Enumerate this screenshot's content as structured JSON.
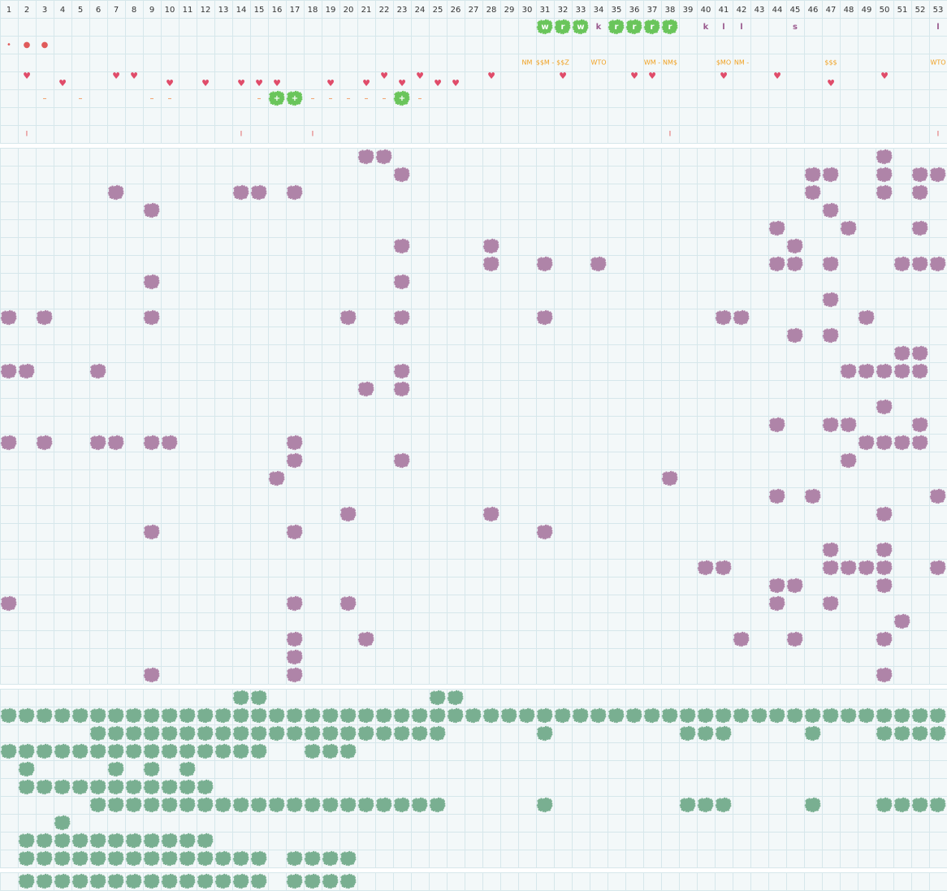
{
  "columns": [
    1,
    2,
    3,
    4,
    5,
    6,
    7,
    8,
    9,
    10,
    11,
    12,
    13,
    14,
    15,
    16,
    17,
    18,
    19,
    20,
    21,
    22,
    23,
    24,
    25,
    26,
    27,
    28,
    29,
    30,
    31,
    32,
    33,
    34,
    35,
    36,
    37,
    38,
    39,
    40,
    41,
    42,
    43,
    44,
    45,
    46,
    47,
    48,
    49,
    50,
    51,
    52,
    53
  ],
  "top_rows": [
    {
      "cells": [
        [
          31,
          "w",
          "tile"
        ],
        [
          32,
          "r",
          "tile"
        ],
        [
          33,
          "w",
          "tile"
        ],
        [
          34,
          "k",
          "letter"
        ],
        [
          35,
          "r",
          "tile"
        ],
        [
          36,
          "r",
          "tile"
        ],
        [
          37,
          "r",
          "tile"
        ],
        [
          38,
          "r",
          "tile"
        ],
        [
          40,
          "k",
          "letter"
        ],
        [
          41,
          "l",
          "letter"
        ],
        [
          42,
          "l",
          "letter"
        ],
        [
          45,
          "s",
          "letter"
        ],
        [
          53,
          "l",
          "letter"
        ]
      ]
    },
    {
      "cells": [
        [
          1,
          "•",
          "dot"
        ],
        [
          2,
          "●",
          "dot"
        ],
        [
          3,
          "●",
          "dot"
        ]
      ]
    },
    {
      "cells": [
        [
          30,
          "NM",
          "money"
        ],
        [
          31,
          "$$M -",
          "money"
        ],
        [
          32,
          "$$Z",
          "money"
        ],
        [
          34,
          "WTO",
          "money"
        ],
        [
          37,
          "WM -",
          "money"
        ],
        [
          38,
          "NM$",
          "money"
        ],
        [
          41,
          "$MO",
          "money"
        ],
        [
          42,
          "NM -",
          "money"
        ],
        [
          47,
          "$$$",
          "money"
        ],
        [
          53,
          "WTO",
          "money"
        ]
      ]
    },
    {
      "cells": [
        [
          2,
          "♥",
          "heart-high"
        ],
        [
          4,
          "♥",
          "heart-low"
        ],
        [
          7,
          "♥",
          "heart-high"
        ],
        [
          8,
          "♥",
          "heart-high"
        ],
        [
          10,
          "♥",
          "heart-low"
        ],
        [
          12,
          "♥",
          "heart-low"
        ],
        [
          14,
          "♥",
          "heart-low"
        ],
        [
          15,
          "♥",
          "heart-low"
        ],
        [
          16,
          "♥",
          "heart-low"
        ],
        [
          19,
          "♥",
          "heart-low"
        ],
        [
          21,
          "♥",
          "heart-low"
        ],
        [
          22,
          "♥",
          "heart-high"
        ],
        [
          23,
          "♥",
          "heart-low"
        ],
        [
          24,
          "♥",
          "heart-high"
        ],
        [
          25,
          "♥",
          "heart-low"
        ],
        [
          26,
          "♥",
          "heart-low"
        ],
        [
          28,
          "♥",
          "heart-high"
        ],
        [
          32,
          "♥",
          "heart-high"
        ],
        [
          36,
          "♥",
          "heart-high"
        ],
        [
          37,
          "♥",
          "heart-high"
        ],
        [
          41,
          "♥",
          "heart-high"
        ],
        [
          44,
          "♥",
          "heart-high"
        ],
        [
          47,
          "♥",
          "heart-low"
        ],
        [
          50,
          "♥",
          "heart-high"
        ]
      ]
    },
    {
      "cells": [
        [
          3,
          "–",
          "dash"
        ],
        [
          5,
          "–",
          "dash"
        ],
        [
          9,
          "–",
          "dash"
        ],
        [
          10,
          "–",
          "dash"
        ],
        [
          15,
          "–",
          "dash"
        ],
        [
          16,
          "+",
          "plus"
        ],
        [
          17,
          "+",
          "plus"
        ],
        [
          18,
          "–",
          "dash"
        ],
        [
          19,
          "–",
          "dash"
        ],
        [
          20,
          "–",
          "dash"
        ],
        [
          21,
          "–",
          "dash"
        ],
        [
          22,
          "–",
          "dash"
        ],
        [
          23,
          "+",
          "plus"
        ],
        [
          24,
          "–",
          "dash"
        ]
      ]
    },
    {
      "cells": []
    },
    {
      "cells": [
        [
          2,
          "I",
          "tick"
        ],
        [
          14,
          "I",
          "tick"
        ],
        [
          18,
          "I",
          "tick"
        ],
        [
          38,
          "I",
          "tick"
        ],
        [
          53,
          "I",
          "tick"
        ]
      ]
    }
  ],
  "purple_rows": [
    [
      21,
      22,
      50
    ],
    [
      23,
      46,
      47,
      50,
      52,
      53
    ],
    [
      7,
      14,
      15,
      17,
      46,
      50,
      52
    ],
    [
      9,
      47
    ],
    [
      44,
      48,
      52
    ],
    [
      23,
      28,
      45
    ],
    [
      28,
      31,
      34,
      44,
      45,
      47,
      51,
      52,
      53
    ],
    [
      9,
      23
    ],
    [
      47
    ],
    [
      1,
      3,
      9,
      20,
      23,
      31,
      41,
      42,
      49
    ],
    [
      45,
      47
    ],
    [
      51,
      52
    ],
    [
      1,
      2,
      6,
      23,
      48,
      49,
      50,
      51,
      52
    ],
    [
      21,
      23
    ],
    [
      50
    ],
    [
      44,
      47,
      48,
      52
    ],
    [
      1,
      3,
      6,
      7,
      9,
      10,
      17,
      49,
      50,
      51,
      52
    ],
    [
      17,
      23,
      48
    ],
    [
      16,
      38
    ],
    [
      44,
      46,
      53
    ],
    [
      20,
      28,
      50
    ],
    [
      9,
      17,
      31
    ],
    [
      47,
      50
    ],
    [
      40,
      41,
      47,
      48,
      49,
      50,
      53
    ],
    [
      44,
      45,
      50
    ],
    [
      1,
      17,
      20,
      44,
      47
    ],
    [
      51
    ],
    [
      17,
      21,
      42,
      45,
      50
    ],
    [
      17
    ],
    [
      9,
      17,
      50
    ]
  ],
  "green_rows": [
    [
      14,
      15,
      25,
      26
    ],
    [
      1,
      2,
      3,
      4,
      5,
      6,
      7,
      8,
      9,
      10,
      11,
      12,
      13,
      14,
      15,
      16,
      17,
      18,
      19,
      20,
      21,
      22,
      23,
      24,
      25,
      26,
      27,
      28,
      29,
      30,
      31,
      32,
      33,
      34,
      35,
      36,
      37,
      38,
      39,
      40,
      41,
      42,
      43,
      44,
      45,
      46,
      47,
      48,
      49,
      50,
      51,
      52,
      53
    ],
    [
      6,
      7,
      8,
      9,
      10,
      11,
      12,
      13,
      14,
      15,
      16,
      17,
      18,
      19,
      20,
      21,
      22,
      23,
      24,
      25,
      31,
      39,
      40,
      41,
      46,
      50,
      51,
      52,
      53
    ],
    [
      1,
      2,
      3,
      4,
      5,
      6,
      7,
      8,
      9,
      10,
      11,
      12,
      13,
      14,
      15,
      18,
      19,
      20
    ],
    [
      2,
      7,
      9,
      11
    ],
    [
      2,
      3,
      4,
      5,
      6,
      7,
      8,
      9,
      10,
      11,
      12
    ],
    [
      6,
      7,
      8,
      9,
      10,
      11,
      12,
      13,
      14,
      15,
      16,
      17,
      18,
      19,
      20,
      21,
      22,
      23,
      24,
      25,
      31,
      39,
      40,
      41,
      46,
      50,
      51,
      52,
      53
    ],
    [
      4
    ],
    [
      2,
      3,
      4,
      5,
      6,
      7,
      8,
      9,
      10,
      11,
      12
    ],
    [
      2,
      3,
      4,
      5,
      6,
      7,
      8,
      9,
      10,
      11,
      12,
      13,
      14,
      15,
      17,
      18,
      19,
      20
    ]
  ],
  "bottom_rows": [
    [
      2,
      3,
      4,
      5,
      6,
      7,
      8,
      9,
      10,
      11,
      12,
      13,
      14,
      15,
      17,
      18,
      19,
      20
    ]
  ]
}
